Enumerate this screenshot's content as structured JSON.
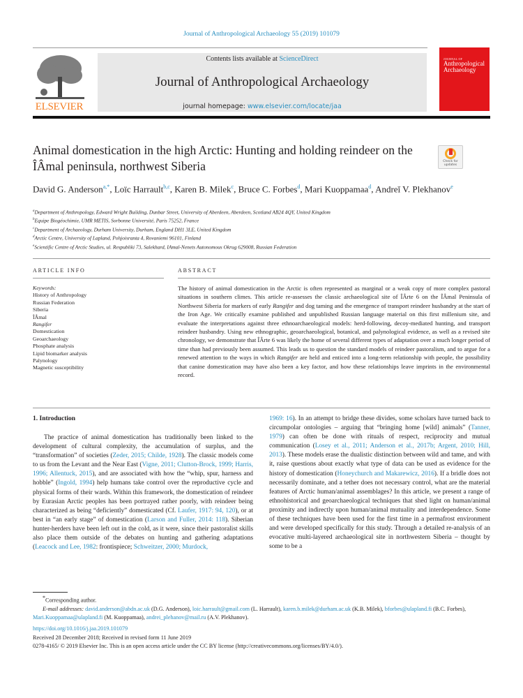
{
  "journal_ref": "Journal of Anthropological Archaeology 55 (2019) 101079",
  "header": {
    "contents_prefix": "Contents lists available at ",
    "contents_link": "ScienceDirect",
    "journal_title": "Journal of Anthropological Archaeology",
    "homepage_prefix": "journal homepage: ",
    "homepage_link": "www.elsevier.com/locate/jaa",
    "publisher_logo_text": "ELSEVIER",
    "cover_small": "JOURNAL OF",
    "cover_title": "Anthropological Archaeology"
  },
  "crossmark_label": "Check for updates",
  "title": "Animal domestication in the high Arctic: Hunting and holding reindeer on the ÎÂmal peninsula, northwest Siberia",
  "authors": [
    {
      "name": "David G. Anderson",
      "sup": "a,*",
      "sep": ", "
    },
    {
      "name": "Loïc Harrault",
      "sup": "b,c",
      "sep": ", "
    },
    {
      "name": "Karen B. Milek",
      "sup": "c",
      "sep": ", "
    },
    {
      "name": "Bruce C. Forbes",
      "sup": "d",
      "sep": ", "
    },
    {
      "name": "Mari Kuoppamaa",
      "sup": "d",
      "sep": ", "
    },
    {
      "name": "Andreĭ V. Plekhanov",
      "sup": "e",
      "sep": ""
    }
  ],
  "affiliations": [
    {
      "sup": "a",
      "text": "Department of Anthropology, Edward Wright Building, Dunbar Street, University of Aberdeen, Aberdeen, Scotland AB24 4QY, United Kingdom"
    },
    {
      "sup": "b",
      "text": "Equipe Biogéochimie, UMR METIS, Sorbonne Université, Paris 75252, France"
    },
    {
      "sup": "c",
      "text": "Department of Archaeology, Durham University, Durham, England DH1 3LE, United Kingdom"
    },
    {
      "sup": "d",
      "text": "Arctic Centre, University of Lapland, Pohjoisranta 4, Rovaniemi 96101, Finland"
    },
    {
      "sup": "e",
      "text": "Scientific Centre of Arctic Studies, ul. Respubliki 73, Salekhard, IAmal-Nenets Autonomous Okrug 629008, Russian Federation"
    }
  ],
  "article_info": {
    "heading": "ARTICLE INFO",
    "keywords_label": "Keywords:",
    "keywords": [
      "History of Anthropology",
      "Russian Federation",
      "Siberia",
      "ÎÂmal",
      "Rangifer",
      "Domestication",
      "Geoarchaeology",
      "Phosphate analysis",
      "Lipid biomarker analysis",
      "Palynology",
      "Magnetic susceptibility"
    ]
  },
  "abstract": {
    "heading": "ABSTRACT",
    "segments": [
      {
        "t": "The history of animal domestication in the Arctic is often represented as marginal or a weak copy of more complex pastoral situations in southern climes. This article re-assesses the classic archaeological site of ÎÂrte 6 on the ÎÂmal Peninsula of Northwest Siberia for markers of early "
      },
      {
        "t": "Rangifer",
        "i": true
      },
      {
        "t": " and dog taming and the emergence of transport reindeer husbandry at the start of the Iron Age. We critically examine published and unpublished Russian language material on this first millenium site, and evaluate the interpretations against three ethnoarchaeological models: herd-following, decoy-mediated hunting, and transport reindeer husbandry. Using new ethnographic, geoarchaeological, botanical, and palynological evidence, as well as a revised site chronology, we demonstrate that ÎÂrte 6 was likely the home of several different types of adaptation over a much longer period of time than had previously been assumed. This leads us to question the standard models of reindeer pastoralism, and to argue for a renewed attention to the ways in which "
      },
      {
        "t": "Rangifer",
        "i": true
      },
      {
        "t": " are held and enticed into a long-term relationship with people, the possibility that canine domestication may have also been a key factor, and how these relationships leave imprints in the environmental record."
      }
    ]
  },
  "intro": {
    "heading": "1.  Introduction",
    "left": [
      {
        "t": "The practice of animal domestication has traditionally been linked to the development of cultural complexity, the accumulation of surplus, and the “transformation” of societies ("
      },
      {
        "t": "Zeder, 2015; Childe, 1928",
        "l": true
      },
      {
        "t": "). The classic models come to us from the Levant and the Near East ("
      },
      {
        "t": "Vigne, 2011; Clutton-Brock, 1999; Harris, 1996; Allentuck, 2015",
        "l": true
      },
      {
        "t": "), and are associated with how the “whip, spur, harness and hobble” ("
      },
      {
        "t": "Ingold, 1994",
        "l": true
      },
      {
        "t": ") help humans take control over the reproductive cycle and physical forms of their wards. Within this framework, the domestication of reindeer by Eurasian Arctic peoples has been portrayed rather poorly, with reindeer being characterized as being “deficiently” domesticated (Cf. "
      },
      {
        "t": "Laufer, 1917: 94, 120",
        "l": true
      },
      {
        "t": "), or at best in “an early stage” of domestication ("
      },
      {
        "t": "Larson and Fuller, 2014: 118",
        "l": true
      },
      {
        "t": "). Siberian hunter-herders have been left out in the cold, as it were, since their pastoralist skills also place them outside of the debates on hunting and gathering adaptations ("
      },
      {
        "t": "Leacock and Lee, 1982",
        "l": true
      },
      {
        "t": ": frontispiece; "
      },
      {
        "t": "Schweitzer, 2000; Murdock,",
        "l": true
      }
    ],
    "right": [
      {
        "t": "1969: 16",
        "l": true
      },
      {
        "t": "). In an attempt to bridge these divides, some scholars have turned back to circumpolar ontologies – arguing that “bringing home [wild] animals” ("
      },
      {
        "t": "Tanner, 1979",
        "l": true
      },
      {
        "t": ") can often be done with rituals of respect, reciprocity and mutual communication ("
      },
      {
        "t": "Losey et al., 2011; Anderson et al., 2017b; Argent, 2010; Hill, 2013",
        "l": true
      },
      {
        "t": "). These models erase the dualistic distinction between wild and tame, and with it, raise questions about exactly what type of data can be used as evidence for the history of domestication ("
      },
      {
        "t": "Honeychurch and Makarewicz, 2016",
        "l": true
      },
      {
        "t": "). If a bridle does not necessarily dominate, and a tether does not necessary control, what are the material features of Arctic human/animal assemblages? In this article, we present a range of ethnohistorical and geoarchaeological techniques that shed light on human/animal proximity and indirectly upon human/animal mutuality and interdependence. Some of these techniques have been used for the first time in a permafrost environment and were developed specifically for this study. Through a detailed re-analysis of an evocative multi-layered archaeological site in northwestern Siberia – thought by some to be a"
      }
    ]
  },
  "footnotes": {
    "corresponding": "Corresponding author.",
    "email_label": "E-mail addresses: ",
    "emails": [
      {
        "email": "david.anderson@abdn.ac.uk",
        "who": " (D.G. Anderson), "
      },
      {
        "email": "loic.harrault@gmail.com",
        "who": " (L. Harrault), "
      },
      {
        "email": "karen.b.milek@durham.ac.uk",
        "who": " (K.B. Milek), "
      },
      {
        "email": "bforbes@ulapland.fi",
        "who": " (B.C. Forbes), "
      },
      {
        "email": "Mari.Kuoppamaa@ulapland.fi",
        "who": " (M. Kuoppamaa), "
      },
      {
        "email": "andrei_plehanov@mail.ru",
        "who": " (A.V. Plekhanov)."
      }
    ]
  },
  "pub": {
    "doi": "https://doi.org/10.1016/j.jaa.2019.101079",
    "received": "Received 28 December 2018; Received in revised form 11 June 2019",
    "copyright": "0278-4165/ © 2019 Elsevier Inc. This is an open access article under the CC BY license (http://creativecommons.org/licenses/BY/4.0/)."
  },
  "colors": {
    "link": "#2a8fc0",
    "elsevier_orange": "#f47c20",
    "cover_red": "#e3161b"
  }
}
